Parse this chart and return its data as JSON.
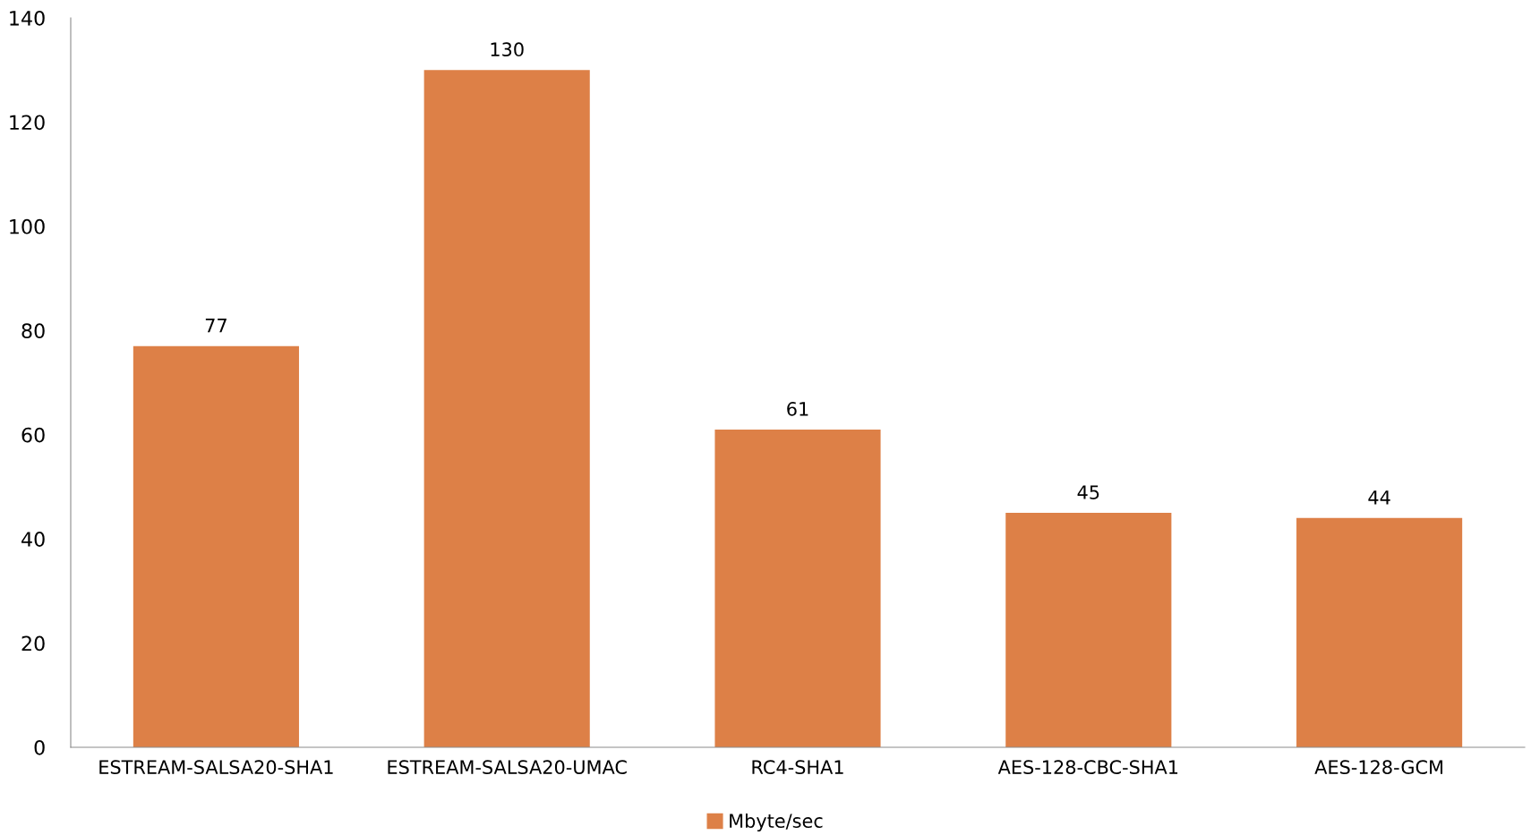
{
  "chart_data": {
    "type": "bar",
    "categories": [
      "ESTREAM-SALSA20-SHA1",
      "ESTREAM-SALSA20-UMAC",
      "RC4-SHA1",
      "AES-128-CBC-SHA1",
      "AES-128-GCM"
    ],
    "series": [
      {
        "name": "Mbyte/sec",
        "color": "#dd8047",
        "values": [
          77,
          130,
          61,
          45,
          44
        ]
      }
    ],
    "ylim": [
      0,
      140
    ],
    "yticks": [
      0,
      20,
      40,
      60,
      80,
      100,
      120,
      140
    ],
    "data_labels": true,
    "legend": "bottom",
    "grid": false
  }
}
